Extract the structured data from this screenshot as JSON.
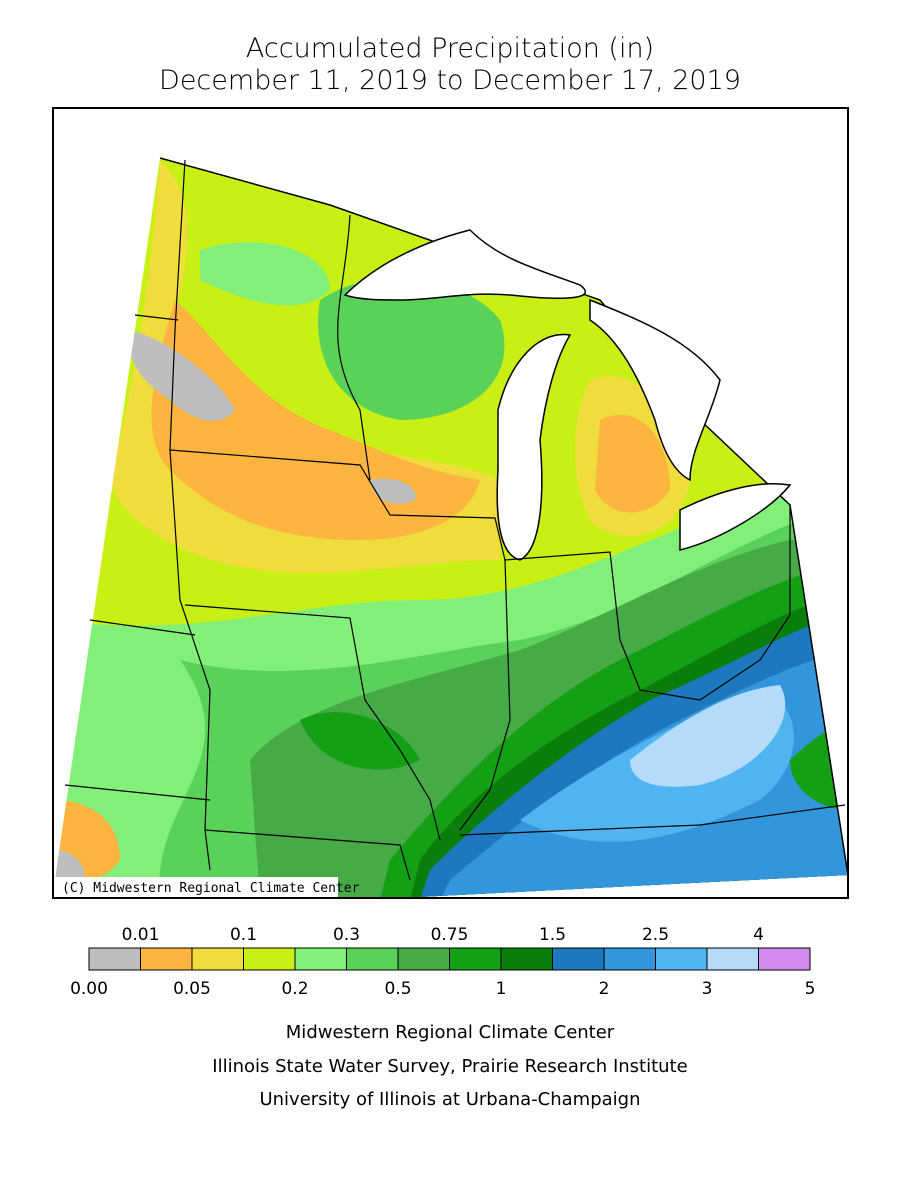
{
  "header": {
    "title_line1": "Accumulated Precipitation (in)",
    "title_line2": "December 11, 2019 to December 17, 2019"
  },
  "map": {
    "credit": "(C) Midwestern Regional Climate Center"
  },
  "legend": {
    "colors": [
      "#bebebe",
      "#fdb53f",
      "#f0dc3c",
      "#c8f014",
      "#82f078",
      "#5ad25a",
      "#46aa46",
      "#14a014",
      "#0a7d0a",
      "#1e78be",
      "#3296dc",
      "#50b4f0",
      "#b4dcfa",
      "#d28cf0"
    ],
    "bottom_labels": [
      "0.00",
      "0.05",
      "0.2",
      "0.5",
      "1",
      "2",
      "3",
      "5"
    ],
    "top_labels": [
      "0.01",
      "0.1",
      "0.3",
      "0.75",
      "1.5",
      "2.5",
      "4"
    ]
  },
  "footer": {
    "line1": "Midwestern Regional Climate Center",
    "line2": "Illinois State Water Survey, Prairie Research Institute",
    "line3": "University of Illinois at Urbana-Champaign"
  }
}
